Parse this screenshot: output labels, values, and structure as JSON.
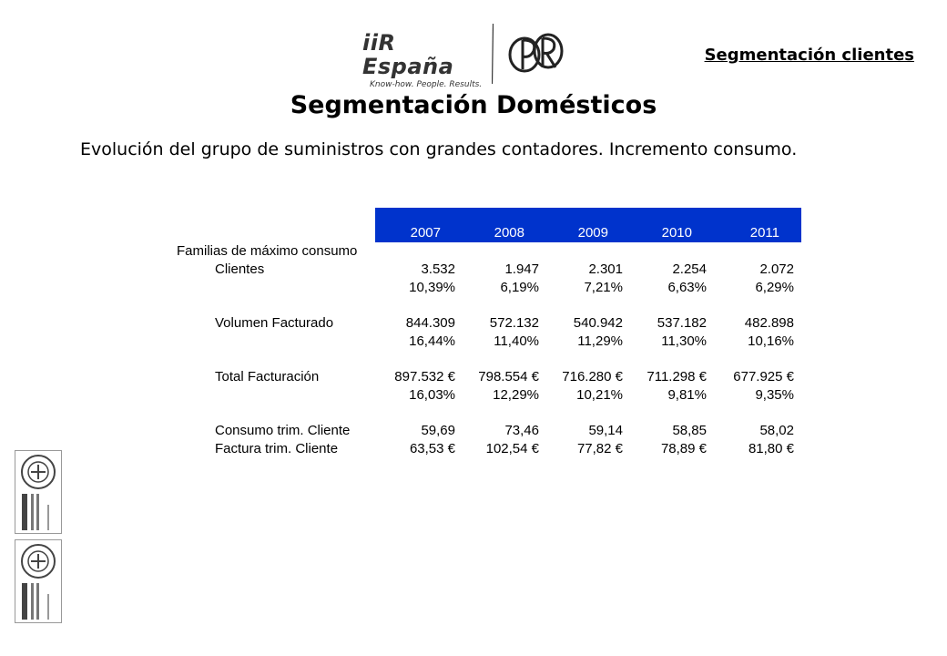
{
  "header": {
    "logo_brand": "iiR España",
    "logo_tagline": "Know-how. People. Results.",
    "section_label": "Segmentación clientes"
  },
  "title": "Segmentación Domésticos",
  "intro": "Evolución del grupo de suministros con grandes contadores. Incremento consumo.",
  "table": {
    "years": [
      "2007",
      "2008",
      "2009",
      "2010",
      "2011"
    ],
    "family_label": "Familias de máximo consumo",
    "rows": [
      {
        "label": "Clientes",
        "values": [
          "3.532",
          "1.947",
          "2.301",
          "2.254",
          "2.072"
        ]
      },
      {
        "label": "",
        "values": [
          "10,39%",
          "6,19%",
          "7,21%",
          "6,63%",
          "6,29%"
        ]
      },
      {
        "label": "Volumen Facturado",
        "values": [
          "844.309",
          "572.132",
          "540.942",
          "537.182",
          "482.898"
        ]
      },
      {
        "label": "",
        "values": [
          "16,44%",
          "11,40%",
          "11,29%",
          "11,30%",
          "10,16%"
        ]
      },
      {
        "label": "Total Facturación",
        "values": [
          "897.532 €",
          "798.554 €",
          "716.280 €",
          "711.298 €",
          "677.925 €"
        ]
      },
      {
        "label": "",
        "values": [
          "16,03%",
          "12,29%",
          "10,21%",
          "9,81%",
          "9,35%"
        ]
      },
      {
        "label": "Consumo trim. Cliente",
        "values": [
          "59,69",
          "73,46",
          "59,14",
          "58,85",
          "58,02"
        ]
      },
      {
        "label": "Factura trim. Cliente",
        "values": [
          "63,53 €",
          "102,54 €",
          "77,82 €",
          "78,89 €",
          "81,80 €"
        ]
      }
    ]
  },
  "colors": {
    "header_fill": "#0033cc",
    "header_text": "#ffffff"
  }
}
